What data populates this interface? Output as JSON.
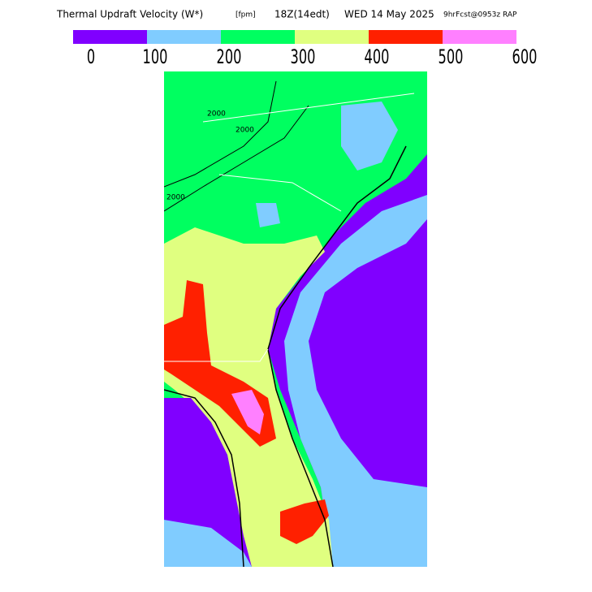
{
  "title": "Thermal Updraft Velocity (W*)",
  "units": "[fpm]",
  "time": "18Z(14edt)",
  "date": "WED 14 May 2025",
  "forecast": "9hrFcst@0953z RAP",
  "colorbar": {
    "colors": [
      "#8000ff",
      "#80ccff",
      "#00ff60",
      "#e0ff80",
      "#ff2000",
      "#ff80ff"
    ],
    "ticks": [
      0,
      100,
      200,
      300,
      400,
      500,
      600
    ]
  },
  "contour_labels": [
    "2000",
    "2000",
    "2000"
  ]
}
